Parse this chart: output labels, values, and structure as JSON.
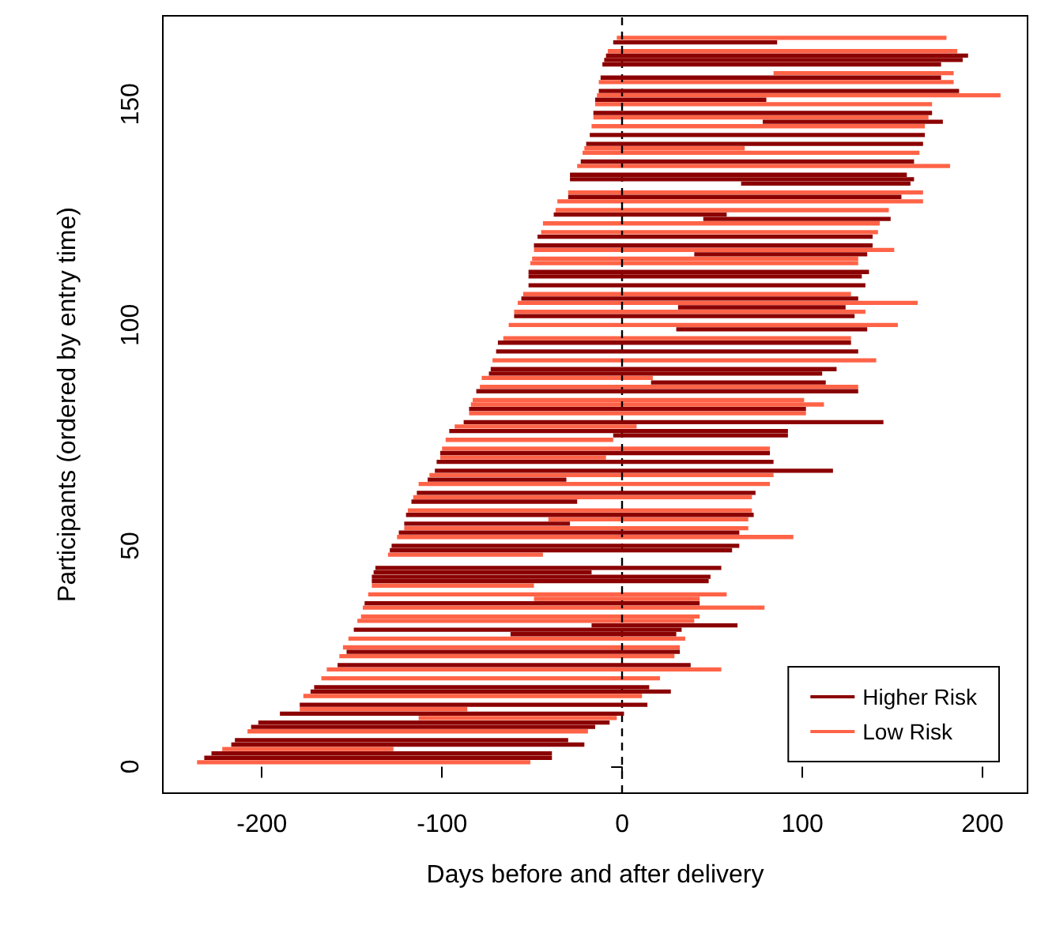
{
  "chart_data": {
    "type": "bar",
    "orientation": "horizontal",
    "xlabel": "Days before and after delivery",
    "ylabel": "Participants (ordered by entry time)",
    "xlim": [
      -255,
      225
    ],
    "xticks": [
      -200,
      -100,
      0,
      100,
      200
    ],
    "ylim": [
      -6,
      170
    ],
    "yticks": [
      0,
      50,
      100,
      150
    ],
    "grid": false,
    "legend": "bottom right",
    "ref_lines": [
      {
        "axis": "x",
        "value": 0,
        "color": "#000000",
        "line_style": "dashed"
      }
    ],
    "series": [
      {
        "name": "Higher Risk",
        "color": "#8b0000",
        "x": [
          2,
          3,
          5,
          6,
          9,
          10,
          12,
          14,
          17,
          18,
          23,
          26,
          30,
          31,
          32,
          37,
          42,
          43,
          44,
          45,
          49,
          50,
          53,
          55,
          57,
          60,
          62,
          65,
          67,
          69,
          71,
          75,
          76,
          78,
          81,
          85,
          87,
          89,
          90,
          94,
          96,
          99,
          102,
          104,
          106,
          109,
          111,
          112,
          116,
          118,
          120,
          124,
          125,
          129,
          132,
          133,
          134,
          137,
          141,
          143,
          146,
          148,
          151,
          153,
          156,
          159,
          160,
          161,
          164
        ],
        "base": [
          -232,
          -228,
          -217,
          -215,
          -206,
          -202,
          -190,
          -179,
          -173,
          -171,
          -158,
          -153,
          -62,
          -149,
          -17,
          -143,
          -139,
          -139,
          -138,
          -137,
          -129,
          -128,
          -124,
          -121,
          -120,
          -117,
          -114,
          -108,
          -104,
          -103,
          -101,
          -5,
          -96,
          -88,
          -85,
          -81,
          16,
          -74,
          -73,
          -70,
          -69,
          30,
          -60,
          31,
          -56,
          -52,
          -52,
          -52,
          40,
          -49,
          -47,
          45,
          -38,
          -30,
          66,
          -29,
          -29,
          -23,
          -20,
          -18,
          78,
          -16,
          -15,
          -13,
          -12,
          -11,
          -10,
          -9,
          -5
        ],
        "values": [
          193,
          189,
          196,
          185,
          191,
          195,
          191,
          193,
          200,
          186,
          196,
          185,
          92,
          182,
          81,
          186,
          187,
          188,
          121,
          192,
          190,
          193,
          189,
          92,
          193,
          92,
          188,
          77,
          221,
          187,
          183,
          97,
          188,
          233,
          187,
          212,
          97,
          185,
          192,
          201,
          196,
          106,
          189,
          93,
          187,
          187,
          185,
          189,
          96,
          188,
          186,
          104,
          96,
          185,
          94,
          191,
          187,
          185,
          187,
          186,
          100,
          188,
          95,
          200,
          189,
          188,
          199,
          201,
          91
        ]
      },
      {
        "name": "Low Risk",
        "color": "#ff6347",
        "x": [
          1,
          4,
          8,
          11,
          13,
          16,
          20,
          22,
          25,
          27,
          29,
          33,
          34,
          36,
          38,
          39,
          41,
          48,
          52,
          54,
          56,
          58,
          61,
          64,
          66,
          70,
          72,
          74,
          77,
          80,
          82,
          83,
          86,
          88,
          92,
          97,
          100,
          103,
          105,
          107,
          114,
          115,
          117,
          121,
          123,
          126,
          128,
          130,
          136,
          139,
          140,
          145,
          147,
          150,
          152,
          155,
          157,
          162,
          165
        ],
        "base": [
          -236,
          -222,
          -208,
          -113,
          -179,
          -177,
          -167,
          -164,
          -157,
          -155,
          -152,
          -147,
          -145,
          -144,
          -49,
          -141,
          -139,
          -130,
          -125,
          -121,
          -41,
          -119,
          -116,
          -113,
          -107,
          -101,
          -100,
          -98,
          -93,
          -85,
          -84,
          -83,
          -79,
          -78,
          -72,
          -66,
          -63,
          -60,
          -58,
          -55,
          -51,
          -50,
          -49,
          -45,
          -44,
          -37,
          -36,
          -30,
          -25,
          -22,
          -21,
          -17,
          -16,
          -15,
          -14,
          -13,
          84,
          -8,
          -3
        ],
        "values": [
          185,
          95,
          189,
          110,
          93,
          188,
          188,
          219,
          186,
          187,
          187,
          187,
          188,
          223,
          92,
          199,
          90,
          86,
          220,
          191,
          111,
          191,
          188,
          195,
          191,
          92,
          182,
          93,
          101,
          187,
          196,
          184,
          210,
          95,
          213,
          193,
          216,
          195,
          222,
          182,
          182,
          181,
          200,
          187,
          187,
          185,
          203,
          197,
          207,
          187,
          89,
          185,
          186,
          187,
          224,
          197,
          100,
          194,
          183
        ]
      }
    ]
  }
}
